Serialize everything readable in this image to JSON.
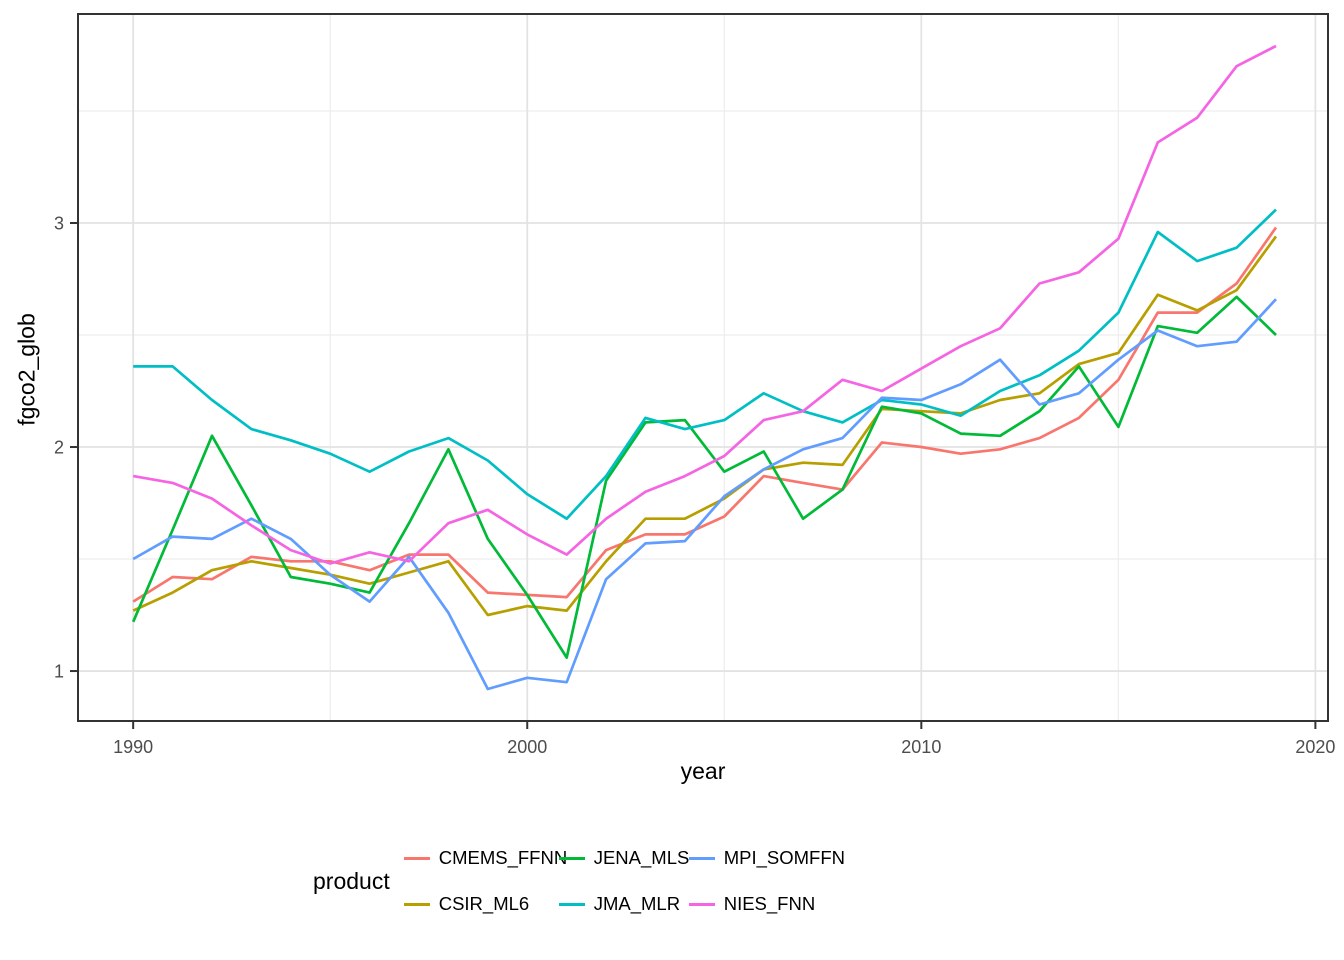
{
  "figure": {
    "xlabel": "year",
    "ylabel": "fgco2_glob",
    "legend_title": "product"
  },
  "styling": {
    "panel_border_color": "#333333",
    "major_grid_color": "#e3e3e3",
    "minor_grid_color": "#ededed",
    "tick_color": "#333333",
    "tick_label_color": "#4d4d4d",
    "background": "#ffffff"
  },
  "chart_data": {
    "type": "line",
    "title": "",
    "xlabel": "year",
    "ylabel": "fgco2_glob",
    "grid": true,
    "legend_position": "bottom",
    "legend_title": "product",
    "xlim": [
      1988.6,
      2020.32
    ],
    "ylim": [
      0.777,
      3.933
    ],
    "x_ticks": [
      1990,
      2000,
      2010,
      2020
    ],
    "x_tick_labels": [
      "1990",
      "2000",
      "2010",
      "2020"
    ],
    "x_minor_ticks": [
      1995,
      2005,
      2015
    ],
    "y_ticks": [
      1,
      2,
      3
    ],
    "y_tick_labels": [
      "1",
      "2",
      "3"
    ],
    "y_minor_ticks": [
      1.5,
      2.5,
      3.5
    ],
    "x": [
      1990,
      1991,
      1992,
      1993,
      1994,
      1995,
      1996,
      1997,
      1998,
      1999,
      2000,
      2001,
      2002,
      2003,
      2004,
      2005,
      2006,
      2007,
      2008,
      2009,
      2010,
      2011,
      2012,
      2013,
      2014,
      2015,
      2016,
      2017,
      2018,
      2019
    ],
    "series": [
      {
        "name": "CMEMS_FFNN",
        "color": "#F8766D",
        "values": [
          1.31,
          1.42,
          1.41,
          1.51,
          1.49,
          1.49,
          1.45,
          1.52,
          1.52,
          1.35,
          1.34,
          1.33,
          1.54,
          1.61,
          1.61,
          1.69,
          1.87,
          1.84,
          1.81,
          2.02,
          2.0,
          1.97,
          1.99,
          2.04,
          2.13,
          2.3,
          2.6,
          2.6,
          2.73,
          2.98
        ]
      },
      {
        "name": "CSIR_ML6",
        "color": "#B79F00",
        "values": [
          1.27,
          1.35,
          1.45,
          1.49,
          1.46,
          1.43,
          1.39,
          1.44,
          1.49,
          1.25,
          1.29,
          1.27,
          1.49,
          1.68,
          1.68,
          1.77,
          1.9,
          1.93,
          1.92,
          2.17,
          2.16,
          2.15,
          2.21,
          2.24,
          2.37,
          2.42,
          2.68,
          2.61,
          2.7,
          2.94
        ]
      },
      {
        "name": "JENA_MLS",
        "color": "#00BA38",
        "values": [
          1.22,
          1.63,
          2.05,
          1.74,
          1.42,
          1.39,
          1.35,
          1.66,
          1.99,
          1.59,
          1.34,
          1.06,
          1.85,
          2.11,
          2.12,
          1.89,
          1.98,
          1.68,
          1.81,
          2.18,
          2.15,
          2.06,
          2.05,
          2.16,
          2.36,
          2.09,
          2.54,
          2.51,
          2.67,
          2.5
        ]
      },
      {
        "name": "JMA_MLR",
        "color": "#00BFC4",
        "values": [
          2.36,
          2.36,
          2.21,
          2.08,
          2.03,
          1.97,
          1.89,
          1.98,
          2.04,
          1.94,
          1.79,
          1.68,
          1.87,
          2.13,
          2.08,
          2.12,
          2.24,
          2.16,
          2.11,
          2.21,
          2.19,
          2.14,
          2.25,
          2.32,
          2.43,
          2.6,
          2.96,
          2.83,
          2.89,
          3.06
        ]
      },
      {
        "name": "MPI_SOMFFN",
        "color": "#619CFF",
        "values": [
          1.5,
          1.6,
          1.59,
          1.68,
          1.59,
          1.43,
          1.31,
          1.51,
          1.26,
          0.92,
          0.97,
          0.95,
          1.41,
          1.57,
          1.58,
          1.78,
          1.9,
          1.99,
          2.04,
          2.22,
          2.21,
          2.28,
          2.39,
          2.19,
          2.24,
          2.39,
          2.52,
          2.45,
          2.47,
          2.66
        ]
      },
      {
        "name": "NIES_FNN",
        "color": "#F564E3",
        "values": [
          1.87,
          1.84,
          1.77,
          1.65,
          1.54,
          1.48,
          1.53,
          1.49,
          1.66,
          1.72,
          1.61,
          1.52,
          1.68,
          1.8,
          1.87,
          1.96,
          2.12,
          2.16,
          2.3,
          2.25,
          2.35,
          2.45,
          2.53,
          2.73,
          2.78,
          2.93,
          3.36,
          3.47,
          3.7,
          3.79
        ]
      }
    ],
    "legend_order": [
      "CMEMS_FFNN",
      "CSIR_ML6",
      "JENA_MLS",
      "JMA_MLR",
      "MPI_SOMFFN",
      "NIES_FNN"
    ]
  }
}
